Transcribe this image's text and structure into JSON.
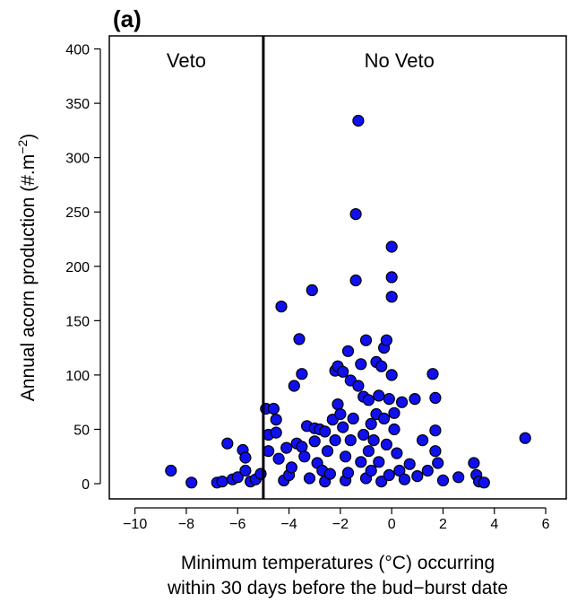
{
  "panel_label": "(a)",
  "chart_data": {
    "type": "scatter",
    "ylabel_main": "Annual acorn production (#.m",
    "ylabel_sup": "−2",
    "ylabel_end": ")",
    "xlabel_line1": "Minimum temperatures (°C) occurring",
    "xlabel_line2": "within 30 days before the bud−burst date",
    "xlim": [
      -11,
      6.8
    ],
    "ylim": [
      -14,
      412
    ],
    "xticks": [
      -10,
      -8,
      -6,
      -4,
      -2,
      0,
      2,
      4,
      6
    ],
    "xtick_labels": [
      "−10",
      "−8",
      "−6",
      "−4",
      "−2",
      "0",
      "2",
      "4",
      "6"
    ],
    "yticks": [
      0,
      50,
      100,
      150,
      200,
      250,
      300,
      350,
      400
    ],
    "ytick_labels": [
      "0",
      "50",
      "100",
      "150",
      "200",
      "250",
      "300",
      "350",
      "400"
    ],
    "threshold_x": -5,
    "region_labels": [
      {
        "text": "Veto",
        "x": -8,
        "y": 383
      },
      {
        "text": "No Veto",
        "x": 0.3,
        "y": 383
      }
    ],
    "point_color": "#1010ee",
    "point_edge": "#000000",
    "series": [
      {
        "points": [
          [
            -8.6,
            12
          ],
          [
            -7.8,
            1
          ],
          [
            -6.8,
            1
          ],
          [
            -6.6,
            2
          ],
          [
            -6.4,
            37
          ],
          [
            -6.2,
            4
          ],
          [
            -6.0,
            6
          ],
          [
            -5.8,
            31
          ],
          [
            -5.7,
            24
          ],
          [
            -5.7,
            12
          ],
          [
            -5.5,
            2
          ],
          [
            -5.3,
            4
          ],
          [
            -5.1,
            9
          ],
          [
            -4.9,
            69
          ],
          [
            -4.8,
            30
          ],
          [
            -4.8,
            45
          ],
          [
            -4.6,
            69
          ],
          [
            -4.5,
            59
          ],
          [
            -4.5,
            47
          ],
          [
            -4.4,
            23
          ],
          [
            -4.3,
            163
          ],
          [
            -4.2,
            3
          ],
          [
            -4.1,
            33
          ],
          [
            -4.0,
            8
          ],
          [
            -3.9,
            15
          ],
          [
            -3.8,
            90
          ],
          [
            -3.7,
            37
          ],
          [
            -3.6,
            133
          ],
          [
            -3.5,
            101
          ],
          [
            -3.5,
            34
          ],
          [
            -3.4,
            25
          ],
          [
            -3.3,
            53
          ],
          [
            -3.2,
            5
          ],
          [
            -3.1,
            178
          ],
          [
            -3.0,
            39
          ],
          [
            -3.0,
            51
          ],
          [
            -2.9,
            19
          ],
          [
            -2.8,
            50
          ],
          [
            -2.7,
            12
          ],
          [
            -2.6,
            2
          ],
          [
            -2.6,
            48
          ],
          [
            -2.5,
            30
          ],
          [
            -2.4,
            9
          ],
          [
            -2.3,
            59
          ],
          [
            -2.2,
            104
          ],
          [
            -2.2,
            40
          ],
          [
            -2.1,
            108
          ],
          [
            -2.1,
            73
          ],
          [
            -2.0,
            64
          ],
          [
            -1.9,
            52
          ],
          [
            -1.9,
            103
          ],
          [
            -1.8,
            25
          ],
          [
            -1.8,
            3
          ],
          [
            -1.7,
            122
          ],
          [
            -1.7,
            10
          ],
          [
            -1.6,
            95
          ],
          [
            -1.6,
            40
          ],
          [
            -1.5,
            60
          ],
          [
            -1.4,
            187
          ],
          [
            -1.4,
            248
          ],
          [
            -1.3,
            334
          ],
          [
            -1.3,
            90
          ],
          [
            -1.2,
            110
          ],
          [
            -1.2,
            20
          ],
          [
            -1.1,
            80
          ],
          [
            -1.1,
            45
          ],
          [
            -1.0,
            132
          ],
          [
            -1.0,
            5
          ],
          [
            -0.9,
            77
          ],
          [
            -0.9,
            30
          ],
          [
            -0.8,
            55
          ],
          [
            -0.8,
            12
          ],
          [
            -0.7,
            40
          ],
          [
            -0.6,
            112
          ],
          [
            -0.6,
            64
          ],
          [
            -0.5,
            81
          ],
          [
            -0.5,
            20
          ],
          [
            -0.4,
            108
          ],
          [
            -0.4,
            2
          ],
          [
            -0.3,
            125
          ],
          [
            -0.3,
            60
          ],
          [
            -0.2,
            132
          ],
          [
            -0.2,
            36
          ],
          [
            -0.1,
            78
          ],
          [
            -0.1,
            8
          ],
          [
            0.0,
            100
          ],
          [
            0.0,
            190
          ],
          [
            0.0,
            172
          ],
          [
            0.0,
            218
          ],
          [
            0.1,
            65
          ],
          [
            0.1,
            50
          ],
          [
            0.2,
            28
          ],
          [
            0.3,
            12
          ],
          [
            0.4,
            75
          ],
          [
            0.5,
            4
          ],
          [
            0.7,
            18
          ],
          [
            0.9,
            78
          ],
          [
            1.0,
            7
          ],
          [
            1.2,
            40
          ],
          [
            1.4,
            12
          ],
          [
            1.6,
            101
          ],
          [
            1.7,
            79
          ],
          [
            1.7,
            49
          ],
          [
            1.7,
            30
          ],
          [
            1.8,
            19
          ],
          [
            2.0,
            3
          ],
          [
            2.6,
            6
          ],
          [
            3.2,
            19
          ],
          [
            3.3,
            8
          ],
          [
            3.4,
            2
          ],
          [
            3.6,
            1
          ],
          [
            5.2,
            42
          ]
        ]
      }
    ]
  }
}
